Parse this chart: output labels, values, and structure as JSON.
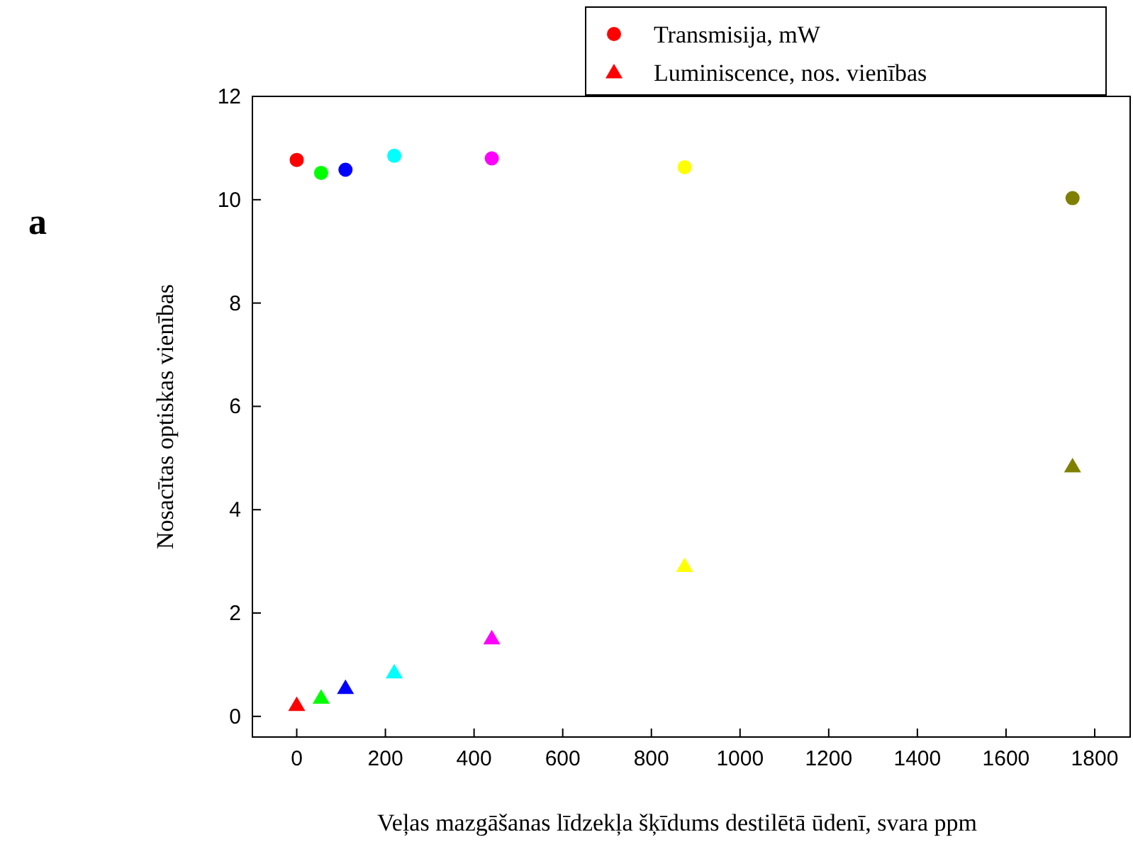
{
  "chart_data": {
    "type": "scatter",
    "xlabel": "Veļas mazgāšanas līdzekļa šķīdums destilētā ūdenī, svara ppm",
    "ylabel": "Nosacītas optiskas vienības",
    "annotations": [
      "a"
    ],
    "x": [
      0,
      55,
      110,
      220,
      440,
      875,
      1750
    ],
    "series": [
      {
        "name": "Transmisija, mW",
        "color": "#ff0000",
        "marker": "circle",
        "colors": [
          "#ff0000",
          "#00ff00",
          "#0000ff",
          "#00ffff",
          "#ff00ff",
          "#ffff00",
          "#808000"
        ],
        "values": [
          10.77,
          10.52,
          10.58,
          10.85,
          10.8,
          10.63,
          10.03
        ]
      },
      {
        "name": "Luminiscence, nos. vienības",
        "color": "#ff0000",
        "marker": "triangle",
        "colors": [
          "#ff0000",
          "#00ff00",
          "#0000ff",
          "#00ffff",
          "#ff00ff",
          "#ffff00",
          "#808000"
        ],
        "values": [
          0.22,
          0.36,
          0.55,
          0.85,
          1.51,
          2.91,
          4.84
        ]
      }
    ],
    "xlim": [
      -100,
      1880
    ],
    "ylim": [
      -0.4,
      12
    ],
    "xticks": [
      0,
      200,
      400,
      600,
      800,
      1000,
      1200,
      1400,
      1600,
      1800
    ],
    "yticks": [
      0,
      2,
      4,
      6,
      8,
      10,
      12
    ],
    "grid": false,
    "legend": "top right"
  }
}
